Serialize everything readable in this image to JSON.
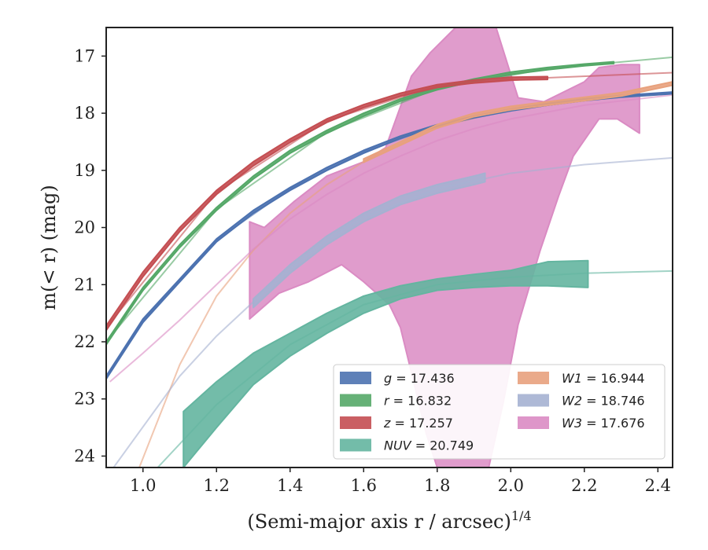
{
  "chart_data": {
    "type": "line",
    "title": "",
    "xlabel": "(Semi-major axis r / arcsec)^1/4",
    "ylabel": "m(< r) (mag)",
    "xlim": [
      0.9,
      2.44
    ],
    "ylim": [
      24.2,
      16.5
    ],
    "y_inverted": true,
    "grid": false,
    "legend_position": "lower-right",
    "x_ticks": [
      "1.0",
      "1.2",
      "1.4",
      "1.6",
      "1.8",
      "2.0",
      "2.2",
      "2.4"
    ],
    "y_ticks": [
      "17",
      "18",
      "19",
      "20",
      "21",
      "22",
      "23",
      "24"
    ],
    "series": [
      {
        "name": "g = 17.436",
        "color": "#4c72b0",
        "band_upper": [
          [
            0.9,
            22.6
          ],
          [
            1.0,
            21.6
          ],
          [
            1.1,
            20.9
          ],
          [
            1.2,
            20.2
          ],
          [
            1.3,
            19.7
          ],
          [
            1.4,
            19.3
          ],
          [
            1.5,
            18.95
          ],
          [
            1.6,
            18.65
          ],
          [
            1.7,
            18.4
          ],
          [
            1.8,
            18.2
          ],
          [
            1.9,
            18.05
          ],
          [
            2.0,
            17.93
          ],
          [
            2.1,
            17.83
          ],
          [
            2.2,
            17.75
          ],
          [
            2.3,
            17.69
          ],
          [
            2.44,
            17.63
          ]
        ],
        "band_lower": [
          [
            0.9,
            22.65
          ],
          [
            1.0,
            21.66
          ],
          [
            1.1,
            20.95
          ],
          [
            1.2,
            20.25
          ],
          [
            1.3,
            19.75
          ],
          [
            1.4,
            19.35
          ],
          [
            1.5,
            19.0
          ],
          [
            1.6,
            18.7
          ],
          [
            1.7,
            18.44
          ],
          [
            1.8,
            18.23
          ],
          [
            1.9,
            18.08
          ],
          [
            2.0,
            17.96
          ],
          [
            2.1,
            17.86
          ],
          [
            2.2,
            17.78
          ],
          [
            2.3,
            17.72
          ],
          [
            2.44,
            17.66
          ]
        ],
        "model": [
          [
            0.9,
            22.6
          ],
          [
            1.0,
            21.63
          ],
          [
            1.2,
            20.22
          ],
          [
            1.4,
            19.32
          ],
          [
            1.6,
            18.68
          ],
          [
            1.8,
            18.22
          ],
          [
            2.0,
            17.95
          ],
          [
            2.2,
            17.77
          ],
          [
            2.44,
            17.64
          ]
        ]
      },
      {
        "name": "r = 16.832",
        "color": "#55a868",
        "band_upper": [
          [
            0.9,
            22.0
          ],
          [
            1.0,
            21.05
          ],
          [
            1.1,
            20.3
          ],
          [
            1.2,
            19.65
          ],
          [
            1.3,
            19.1
          ],
          [
            1.4,
            18.65
          ],
          [
            1.5,
            18.3
          ],
          [
            1.6,
            18.0
          ],
          [
            1.7,
            17.75
          ],
          [
            1.8,
            17.55
          ],
          [
            1.9,
            17.4
          ],
          [
            2.0,
            17.28
          ],
          [
            2.1,
            17.2
          ],
          [
            2.2,
            17.14
          ],
          [
            2.28,
            17.1
          ]
        ],
        "band_lower": [
          [
            0.9,
            22.05
          ],
          [
            1.0,
            21.1
          ],
          [
            1.1,
            20.35
          ],
          [
            1.2,
            19.7
          ],
          [
            1.3,
            19.15
          ],
          [
            1.4,
            18.7
          ],
          [
            1.5,
            18.35
          ],
          [
            1.6,
            18.05
          ],
          [
            1.7,
            17.79
          ],
          [
            1.8,
            17.59
          ],
          [
            1.9,
            17.44
          ],
          [
            2.0,
            17.32
          ],
          [
            2.1,
            17.24
          ],
          [
            2.2,
            17.17
          ],
          [
            2.28,
            17.13
          ]
        ],
        "model": [
          [
            0.9,
            22.0
          ],
          [
            1.2,
            19.68
          ],
          [
            1.5,
            18.33
          ],
          [
            1.8,
            17.57
          ],
          [
            2.1,
            17.22
          ],
          [
            2.44,
            17.02
          ]
        ]
      },
      {
        "name": "z = 17.257",
        "color": "#c44e52",
        "band_upper": [
          [
            0.9,
            21.72
          ],
          [
            1.0,
            20.78
          ],
          [
            1.1,
            20.0
          ],
          [
            1.2,
            19.35
          ],
          [
            1.3,
            18.85
          ],
          [
            1.4,
            18.45
          ],
          [
            1.5,
            18.1
          ],
          [
            1.6,
            17.85
          ],
          [
            1.7,
            17.65
          ],
          [
            1.8,
            17.5
          ],
          [
            1.9,
            17.42
          ],
          [
            2.0,
            17.37
          ],
          [
            2.1,
            17.36
          ]
        ],
        "band_lower": [
          [
            0.9,
            21.8
          ],
          [
            1.0,
            20.86
          ],
          [
            1.1,
            20.07
          ],
          [
            1.2,
            19.42
          ],
          [
            1.3,
            18.92
          ],
          [
            1.4,
            18.51
          ],
          [
            1.5,
            18.16
          ],
          [
            1.6,
            17.9
          ],
          [
            1.7,
            17.7
          ],
          [
            1.8,
            17.55
          ],
          [
            1.9,
            17.47
          ],
          [
            2.0,
            17.42
          ],
          [
            2.1,
            17.41
          ]
        ],
        "model": [
          [
            0.9,
            21.75
          ],
          [
            1.2,
            19.38
          ],
          [
            1.5,
            18.13
          ],
          [
            1.8,
            17.52
          ],
          [
            2.1,
            17.38
          ],
          [
            2.44,
            17.29
          ]
        ]
      },
      {
        "name": "NUV = 20.749",
        "color": "#64b5a0",
        "band_upper": [
          [
            1.11,
            23.22
          ],
          [
            1.2,
            22.7
          ],
          [
            1.3,
            22.2
          ],
          [
            1.4,
            21.85
          ],
          [
            1.5,
            21.5
          ],
          [
            1.6,
            21.2
          ],
          [
            1.7,
            21.02
          ],
          [
            1.8,
            20.9
          ],
          [
            1.9,
            20.82
          ],
          [
            2.0,
            20.75
          ],
          [
            2.1,
            20.6
          ],
          [
            2.21,
            20.58
          ]
        ],
        "band_lower": [
          [
            1.11,
            24.2
          ],
          [
            1.2,
            23.5
          ],
          [
            1.3,
            22.75
          ],
          [
            1.4,
            22.25
          ],
          [
            1.5,
            21.85
          ],
          [
            1.6,
            21.5
          ],
          [
            1.7,
            21.25
          ],
          [
            1.8,
            21.1
          ],
          [
            1.9,
            21.05
          ],
          [
            2.0,
            21.02
          ],
          [
            2.1,
            21.02
          ],
          [
            2.21,
            21.05
          ]
        ],
        "model": [
          [
            1.04,
            24.2
          ],
          [
            1.2,
            23.1
          ],
          [
            1.4,
            22.05
          ],
          [
            1.6,
            21.35
          ],
          [
            1.8,
            21.0
          ],
          [
            2.0,
            20.87
          ],
          [
            2.2,
            20.8
          ],
          [
            2.44,
            20.76
          ]
        ]
      },
      {
        "name": "W1 = 16.944",
        "color": "#e8a17d",
        "band_upper": [
          [
            1.6,
            18.8
          ],
          [
            1.7,
            18.5
          ],
          [
            1.8,
            18.2
          ],
          [
            1.9,
            18.0
          ],
          [
            2.0,
            17.88
          ],
          [
            2.1,
            17.8
          ],
          [
            2.2,
            17.72
          ],
          [
            2.3,
            17.64
          ],
          [
            2.44,
            17.45
          ]
        ],
        "band_lower": [
          [
            1.6,
            18.86
          ],
          [
            1.7,
            18.56
          ],
          [
            1.8,
            18.26
          ],
          [
            1.9,
            18.06
          ],
          [
            2.0,
            17.94
          ],
          [
            2.1,
            17.86
          ],
          [
            2.2,
            17.78
          ],
          [
            2.3,
            17.7
          ],
          [
            2.44,
            17.51
          ]
        ],
        "model": [
          [
            0.99,
            24.2
          ],
          [
            1.1,
            22.4
          ],
          [
            1.2,
            21.2
          ],
          [
            1.3,
            20.4
          ],
          [
            1.4,
            19.75
          ],
          [
            1.5,
            19.25
          ],
          [
            1.6,
            18.85
          ],
          [
            1.8,
            18.25
          ],
          [
            2.0,
            17.92
          ],
          [
            2.2,
            17.76
          ],
          [
            2.44,
            17.66
          ]
        ]
      },
      {
        "name": "W2 = 18.746",
        "color": "#a5b1d1",
        "band_upper": [
          [
            1.3,
            21.25
          ],
          [
            1.4,
            20.65
          ],
          [
            1.5,
            20.15
          ],
          [
            1.6,
            19.75
          ],
          [
            1.7,
            19.45
          ],
          [
            1.8,
            19.25
          ],
          [
            1.9,
            19.1
          ],
          [
            1.93,
            19.05
          ]
        ],
        "band_lower": [
          [
            1.3,
            21.4
          ],
          [
            1.4,
            20.8
          ],
          [
            1.5,
            20.3
          ],
          [
            1.6,
            19.9
          ],
          [
            1.7,
            19.6
          ],
          [
            1.8,
            19.4
          ],
          [
            1.9,
            19.25
          ],
          [
            1.93,
            19.2
          ]
        ],
        "model": [
          [
            0.92,
            24.2
          ],
          [
            1.1,
            22.6
          ],
          [
            1.2,
            21.9
          ],
          [
            1.3,
            21.3
          ],
          [
            1.4,
            20.72
          ],
          [
            1.5,
            20.22
          ],
          [
            1.6,
            19.82
          ],
          [
            1.8,
            19.32
          ],
          [
            2.0,
            19.05
          ],
          [
            2.2,
            18.9
          ],
          [
            2.44,
            18.78
          ]
        ]
      },
      {
        "name": "W3 = 17.676",
        "color": "#da8bc3",
        "band_upper": [
          [
            1.29,
            19.9
          ],
          [
            1.33,
            20.0
          ],
          [
            1.41,
            19.55
          ],
          [
            1.5,
            19.1
          ],
          [
            1.6,
            18.85
          ],
          [
            1.66,
            18.6
          ],
          [
            1.73,
            17.35
          ],
          [
            1.78,
            16.95
          ],
          [
            1.85,
            16.5
          ],
          [
            1.96,
            16.5
          ],
          [
            2.02,
            17.73
          ],
          [
            2.09,
            17.8
          ],
          [
            2.2,
            17.45
          ],
          [
            2.24,
            17.2
          ],
          [
            2.3,
            17.15
          ],
          [
            2.35,
            17.15
          ]
        ],
        "band_lower": [
          [
            1.29,
            21.6
          ],
          [
            1.37,
            21.15
          ],
          [
            1.45,
            20.95
          ],
          [
            1.54,
            20.65
          ],
          [
            1.6,
            20.95
          ],
          [
            1.67,
            21.35
          ],
          [
            1.7,
            21.75
          ],
          [
            1.77,
            23.6
          ],
          [
            1.8,
            24.2
          ],
          [
            1.94,
            24.2
          ],
          [
            1.98,
            23.05
          ],
          [
            2.02,
            21.7
          ],
          [
            2.08,
            20.4
          ],
          [
            2.13,
            19.45
          ],
          [
            2.17,
            18.75
          ],
          [
            2.24,
            18.1
          ],
          [
            2.29,
            18.1
          ],
          [
            2.35,
            18.35
          ]
        ],
        "model": [
          [
            0.91,
            22.7
          ],
          [
            1.0,
            22.2
          ],
          [
            1.1,
            21.62
          ],
          [
            1.2,
            21.0
          ],
          [
            1.3,
            20.38
          ],
          [
            1.4,
            19.85
          ],
          [
            1.5,
            19.42
          ],
          [
            1.6,
            19.05
          ],
          [
            1.7,
            18.75
          ],
          [
            1.8,
            18.48
          ],
          [
            1.9,
            18.27
          ],
          [
            2.0,
            18.1
          ],
          [
            2.2,
            17.86
          ],
          [
            2.44,
            17.68
          ]
        ]
      }
    ]
  }
}
